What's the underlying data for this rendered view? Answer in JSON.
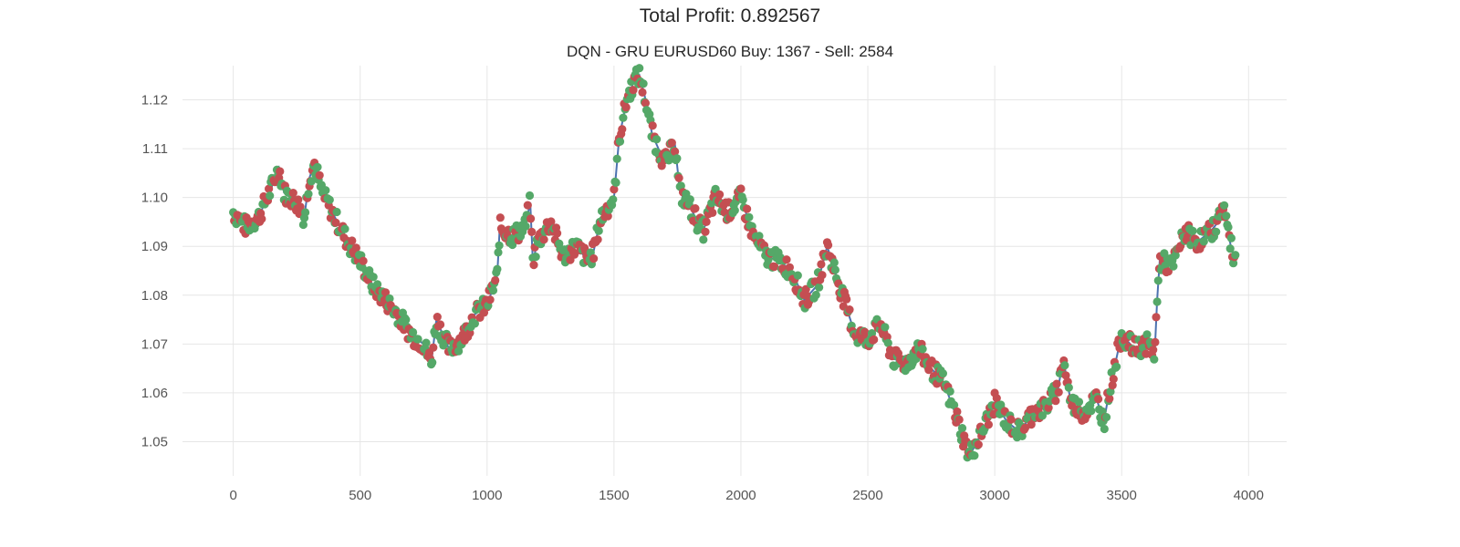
{
  "chart_data": {
    "type": "line",
    "suptitle": "Total Profit: 0.892567",
    "title": "DQN - GRU EURUSD60 Buy: 1367 - Sell: 2584",
    "xlabel": "",
    "ylabel": "",
    "xlim": [
      -200,
      4150
    ],
    "ylim": [
      1.043,
      1.127
    ],
    "xticks": [
      0,
      500,
      1000,
      1500,
      2000,
      2500,
      3000,
      3500,
      4000
    ],
    "yticks": [
      1.05,
      1.06,
      1.07,
      1.08,
      1.09,
      1.1,
      1.11,
      1.12
    ],
    "ytick_labels": [
      "1.05",
      "1.06",
      "1.07",
      "1.08",
      "1.09",
      "1.10",
      "1.11",
      "1.12"
    ],
    "grid": true,
    "legend": "none",
    "series": [
      {
        "color": "#4c72b0",
        "marker": "line",
        "x": [
          0,
          50,
          100,
          150,
          180,
          200,
          250,
          280,
          300,
          320,
          350,
          400,
          450,
          500,
          550,
          600,
          650,
          700,
          750,
          780,
          800,
          850,
          900,
          950,
          1000,
          1040,
          1050,
          1100,
          1150,
          1170,
          1180,
          1200,
          1250,
          1300,
          1350,
          1400,
          1420,
          1440,
          1450,
          1500,
          1520,
          1550,
          1580,
          1600,
          1620,
          1650,
          1700,
          1740,
          1760,
          1800,
          1850,
          1900,
          1950,
          2000,
          2050,
          2100,
          2150,
          2200,
          2250,
          2300,
          2340,
          2400,
          2450,
          2500,
          2550,
          2600,
          2650,
          2700,
          2750,
          2800,
          2850,
          2900,
          2950,
          3000,
          3050,
          3100,
          3150,
          3200,
          3250,
          3270,
          3300,
          3350,
          3400,
          3430,
          3450,
          3500,
          3550,
          3600,
          3630,
          3640,
          3650,
          3700,
          3750,
          3800,
          3850,
          3880,
          3900,
          3930,
          3950
        ],
        "y": [
          1.097,
          1.094,
          1.096,
          1.102,
          1.106,
          1.101,
          1.099,
          1.096,
          1.104,
          1.107,
          1.101,
          1.096,
          1.091,
          1.087,
          1.082,
          1.079,
          1.076,
          1.072,
          1.07,
          1.066,
          1.075,
          1.069,
          1.071,
          1.076,
          1.078,
          1.084,
          1.094,
          1.092,
          1.094,
          1.099,
          1.087,
          1.091,
          1.095,
          1.088,
          1.09,
          1.087,
          1.089,
          1.094,
          1.096,
          1.1,
          1.112,
          1.12,
          1.124,
          1.125,
          1.121,
          1.113,
          1.107,
          1.111,
          1.101,
          1.098,
          1.093,
          1.1,
          1.097,
          1.1,
          1.092,
          1.088,
          1.087,
          1.085,
          1.079,
          1.082,
          1.09,
          1.08,
          1.072,
          1.071,
          1.074,
          1.067,
          1.066,
          1.069,
          1.065,
          1.062,
          1.055,
          1.047,
          1.052,
          1.058,
          1.054,
          1.052,
          1.056,
          1.057,
          1.061,
          1.067,
          1.058,
          1.056,
          1.059,
          1.054,
          1.06,
          1.072,
          1.069,
          1.07,
          1.068,
          1.079,
          1.087,
          1.086,
          1.093,
          1.091,
          1.093,
          1.095,
          1.099,
          1.09,
          1.087
        ]
      }
    ],
    "markers": {
      "sell": {
        "color": "#c44e52",
        "label": "Sell"
      },
      "buy": {
        "color": "#55a868",
        "label": "Buy"
      }
    },
    "colors": {
      "grid": "#e6e6e6",
      "tick_text": "#555555",
      "title_text": "#262626"
    }
  }
}
